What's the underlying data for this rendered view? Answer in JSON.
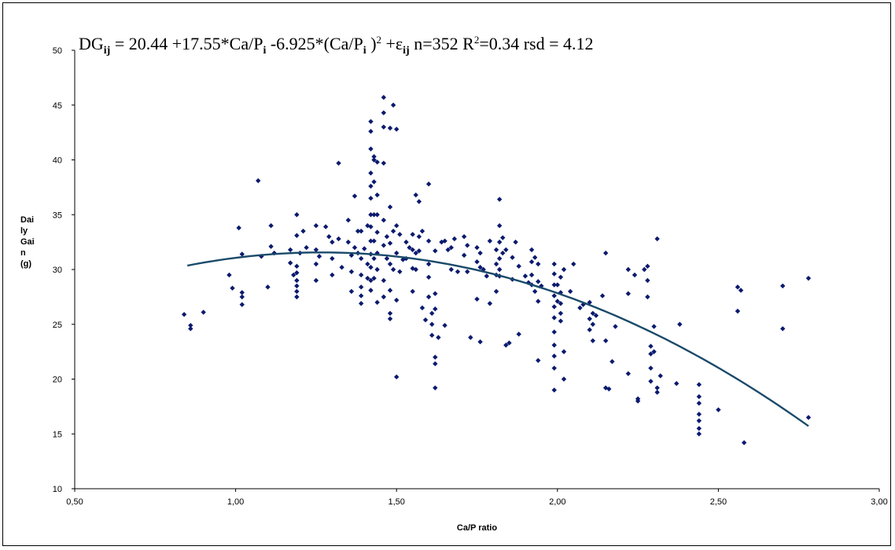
{
  "chart_data": {
    "type": "scatter",
    "xlabel": "Ca/P ratio",
    "ylabel_lines": [
      "Dai",
      "ly",
      "Gai",
      "n",
      "(g)"
    ],
    "xlim": [
      0.5,
      3.0
    ],
    "ylim": [
      10,
      50
    ],
    "x_ticks": [
      0.5,
      1.0,
      1.5,
      2.0,
      2.5,
      3.0
    ],
    "x_tick_labels": [
      "0,50",
      "1,00",
      "1,50",
      "2,00",
      "2,50",
      "3,00"
    ],
    "y_ticks": [
      10,
      15,
      20,
      25,
      30,
      35,
      40,
      45,
      50
    ],
    "y_tick_labels": [
      "10",
      "15",
      "20",
      "25",
      "30",
      "35",
      "40",
      "45",
      "50"
    ],
    "marker_color": "#0a1a6e",
    "curve_color": "#1a4a6a",
    "equation": {
      "lhs": "DG",
      "lhs_sub": "ij",
      "part1": " = 20.44 +17.55*Ca/P",
      "sub_i1": "i",
      "part2": " -6.925*(Ca/P",
      "sub_i2": "i",
      "part3": " )",
      "sup_2": "2",
      "part4": " +ε",
      "eps_sub": "ij",
      "part5": " n=352 R",
      "sup_r2": "2",
      "part6": "=0.34 rsd = 4.12"
    },
    "fit": {
      "a": 20.44,
      "b": 17.55,
      "c": -6.925,
      "x_from": 0.85,
      "x_to": 2.78
    },
    "points": [
      [
        0.84,
        25.9
      ],
      [
        0.86,
        24.9
      ],
      [
        0.86,
        24.6
      ],
      [
        0.9,
        26.1
      ],
      [
        0.98,
        29.5
      ],
      [
        0.99,
        28.3
      ],
      [
        1.01,
        33.8
      ],
      [
        1.02,
        31.4
      ],
      [
        1.02,
        27.9
      ],
      [
        1.02,
        27.5
      ],
      [
        1.02,
        26.8
      ],
      [
        1.07,
        38.1
      ],
      [
        1.08,
        31.2
      ],
      [
        1.1,
        28.4
      ],
      [
        1.11,
        34.0
      ],
      [
        1.11,
        32.1
      ],
      [
        1.12,
        31.5
      ],
      [
        1.17,
        31.8
      ],
      [
        1.17,
        30.6
      ],
      [
        1.18,
        29.5
      ],
      [
        1.19,
        35.0
      ],
      [
        1.19,
        33.1
      ],
      [
        1.19,
        30.3
      ],
      [
        1.19,
        29.7
      ],
      [
        1.19,
        29.0
      ],
      [
        1.19,
        28.5
      ],
      [
        1.19,
        28.0
      ],
      [
        1.19,
        27.5
      ],
      [
        1.2,
        31.5
      ],
      [
        1.21,
        33.5
      ],
      [
        1.22,
        32.0
      ],
      [
        1.25,
        34.0
      ],
      [
        1.25,
        31.8
      ],
      [
        1.25,
        30.5
      ],
      [
        1.25,
        29.0
      ],
      [
        1.26,
        31.2
      ],
      [
        1.28,
        33.9
      ],
      [
        1.29,
        33.0
      ],
      [
        1.3,
        32.5
      ],
      [
        1.3,
        31.0
      ],
      [
        1.3,
        29.5
      ],
      [
        1.32,
        39.7
      ],
      [
        1.32,
        32.8
      ],
      [
        1.33,
        30.2
      ],
      [
        1.35,
        34.5
      ],
      [
        1.35,
        32.5
      ],
      [
        1.36,
        31.3
      ],
      [
        1.36,
        29.8
      ],
      [
        1.36,
        28.0
      ],
      [
        1.37,
        36.7
      ],
      [
        1.37,
        32.0
      ],
      [
        1.38,
        33.5
      ],
      [
        1.38,
        31.5
      ],
      [
        1.39,
        33.5
      ],
      [
        1.39,
        31.0
      ],
      [
        1.39,
        29.5
      ],
      [
        1.39,
        28.4
      ],
      [
        1.39,
        27.6
      ],
      [
        1.39,
        26.9
      ],
      [
        1.4,
        31.9
      ],
      [
        1.41,
        34.0
      ],
      [
        1.41,
        30.5
      ],
      [
        1.41,
        29.2
      ],
      [
        1.42,
        43.5
      ],
      [
        1.42,
        42.6
      ],
      [
        1.42,
        41.0
      ],
      [
        1.42,
        38.8
      ],
      [
        1.42,
        37.6
      ],
      [
        1.42,
        36.5
      ],
      [
        1.42,
        35.0
      ],
      [
        1.42,
        33.9
      ],
      [
        1.42,
        32.6
      ],
      [
        1.42,
        31.4
      ],
      [
        1.42,
        30.2
      ],
      [
        1.42,
        29.0
      ],
      [
        1.42,
        28.1
      ],
      [
        1.43,
        40.3
      ],
      [
        1.43,
        40.0
      ],
      [
        1.43,
        38.0
      ],
      [
        1.43,
        35.0
      ],
      [
        1.43,
        32.6
      ],
      [
        1.43,
        31.0
      ],
      [
        1.43,
        29.2
      ],
      [
        1.44,
        39.8
      ],
      [
        1.44,
        36.8
      ],
      [
        1.44,
        35.0
      ],
      [
        1.44,
        33.4
      ],
      [
        1.44,
        31.5
      ],
      [
        1.44,
        30.0
      ],
      [
        1.44,
        27.0
      ],
      [
        1.46,
        45.7
      ],
      [
        1.46,
        44.3
      ],
      [
        1.46,
        43.0
      ],
      [
        1.46,
        39.7
      ],
      [
        1.46,
        34.5
      ],
      [
        1.46,
        32.2
      ],
      [
        1.46,
        29.0
      ],
      [
        1.46,
        27.5
      ],
      [
        1.47,
        33.0
      ],
      [
        1.47,
        31.0
      ],
      [
        1.48,
        42.9
      ],
      [
        1.48,
        35.7
      ],
      [
        1.48,
        32.4
      ],
      [
        1.48,
        30.5
      ],
      [
        1.48,
        28.1
      ],
      [
        1.48,
        26.0
      ],
      [
        1.48,
        25.5
      ],
      [
        1.49,
        45.0
      ],
      [
        1.49,
        33.5
      ],
      [
        1.49,
        30.0
      ],
      [
        1.5,
        42.8
      ],
      [
        1.5,
        34.0
      ],
      [
        1.5,
        31.5
      ],
      [
        1.5,
        27.2
      ],
      [
        1.5,
        20.2
      ],
      [
        1.51,
        33.2
      ],
      [
        1.51,
        29.8
      ],
      [
        1.52,
        30.9
      ],
      [
        1.53,
        32.5
      ],
      [
        1.53,
        31.0
      ],
      [
        1.54,
        32.0
      ],
      [
        1.55,
        33.2
      ],
      [
        1.55,
        31.8
      ],
      [
        1.55,
        30.1
      ],
      [
        1.55,
        28.0
      ],
      [
        1.56,
        36.8
      ],
      [
        1.56,
        31.5
      ],
      [
        1.56,
        30.0
      ],
      [
        1.57,
        36.2
      ],
      [
        1.57,
        33.0
      ],
      [
        1.57,
        31.7
      ],
      [
        1.58,
        33.5
      ],
      [
        1.58,
        26.5
      ],
      [
        1.59,
        25.4
      ],
      [
        1.6,
        37.8
      ],
      [
        1.6,
        32.6
      ],
      [
        1.6,
        30.5
      ],
      [
        1.6,
        29.3
      ],
      [
        1.6,
        27.5
      ],
      [
        1.61,
        26.0
      ],
      [
        1.61,
        25.0
      ],
      [
        1.61,
        24.0
      ],
      [
        1.62,
        31.7
      ],
      [
        1.62,
        27.8
      ],
      [
        1.62,
        26.4
      ],
      [
        1.62,
        22.0
      ],
      [
        1.62,
        21.4
      ],
      [
        1.62,
        19.2
      ],
      [
        1.63,
        23.8
      ],
      [
        1.64,
        32.5
      ],
      [
        1.65,
        32.6
      ],
      [
        1.65,
        24.9
      ],
      [
        1.66,
        31.8
      ],
      [
        1.67,
        32.0
      ],
      [
        1.67,
        30.0
      ],
      [
        1.68,
        32.8
      ],
      [
        1.69,
        29.8
      ],
      [
        1.71,
        33.0
      ],
      [
        1.71,
        31.3
      ],
      [
        1.72,
        32.2
      ],
      [
        1.72,
        29.8
      ],
      [
        1.73,
        23.8
      ],
      [
        1.75,
        32.0
      ],
      [
        1.75,
        30.7
      ],
      [
        1.75,
        27.3
      ],
      [
        1.76,
        31.5
      ],
      [
        1.76,
        30.2
      ],
      [
        1.76,
        23.4
      ],
      [
        1.77,
        30.0
      ],
      [
        1.78,
        29.4
      ],
      [
        1.79,
        32.6
      ],
      [
        1.79,
        26.9
      ],
      [
        1.81,
        31.8
      ],
      [
        1.81,
        30.5
      ],
      [
        1.81,
        29.5
      ],
      [
        1.81,
        28.0
      ],
      [
        1.82,
        36.4
      ],
      [
        1.82,
        34.0
      ],
      [
        1.82,
        32.5
      ],
      [
        1.82,
        31.0
      ],
      [
        1.82,
        30.0
      ],
      [
        1.82,
        29.4
      ],
      [
        1.83,
        32.9
      ],
      [
        1.83,
        31.5
      ],
      [
        1.84,
        31.8
      ],
      [
        1.84,
        23.1
      ],
      [
        1.85,
        23.3
      ],
      [
        1.86,
        31.1
      ],
      [
        1.86,
        29.1
      ],
      [
        1.87,
        32.5
      ],
      [
        1.88,
        30.3
      ],
      [
        1.88,
        24.1
      ],
      [
        1.9,
        29.4
      ],
      [
        1.91,
        28.8
      ],
      [
        1.92,
        31.8
      ],
      [
        1.92,
        30.7
      ],
      [
        1.92,
        29.5
      ],
      [
        1.92,
        28.6
      ],
      [
        1.93,
        31.1
      ],
      [
        1.93,
        28.0
      ],
      [
        1.94,
        30.5
      ],
      [
        1.94,
        28.9
      ],
      [
        1.94,
        27.1
      ],
      [
        1.94,
        21.7
      ],
      [
        1.95,
        28.5
      ],
      [
        1.99,
        30.5
      ],
      [
        1.99,
        29.6
      ],
      [
        1.99,
        28.6
      ],
      [
        1.99,
        27.6
      ],
      [
        1.99,
        26.6
      ],
      [
        1.99,
        25.6
      ],
      [
        1.99,
        24.3
      ],
      [
        1.99,
        23.1
      ],
      [
        1.99,
        22.1
      ],
      [
        1.99,
        21.0
      ],
      [
        1.99,
        19.0
      ],
      [
        2.0,
        28.6
      ],
      [
        2.0,
        27.1
      ],
      [
        2.01,
        29.3
      ],
      [
        2.01,
        27.9
      ],
      [
        2.01,
        26.9
      ],
      [
        2.01,
        26.0
      ],
      [
        2.01,
        25.3
      ],
      [
        2.02,
        22.5
      ],
      [
        2.02,
        20.0
      ],
      [
        2.02,
        30.0
      ],
      [
        2.04,
        28.0
      ],
      [
        2.05,
        30.5
      ],
      [
        2.07,
        26.5
      ],
      [
        2.08,
        26.8
      ],
      [
        2.1,
        27.0
      ],
      [
        2.1,
        25.5
      ],
      [
        2.1,
        24.5
      ],
      [
        2.11,
        26.0
      ],
      [
        2.11,
        25.0
      ],
      [
        2.11,
        23.5
      ],
      [
        2.12,
        25.8
      ],
      [
        2.14,
        27.6
      ],
      [
        2.15,
        31.5
      ],
      [
        2.15,
        23.5
      ],
      [
        2.15,
        19.2
      ],
      [
        2.16,
        19.1
      ],
      [
        2.17,
        21.6
      ],
      [
        2.18,
        24.8
      ],
      [
        2.22,
        30.0
      ],
      [
        2.22,
        27.8
      ],
      [
        2.22,
        20.5
      ],
      [
        2.24,
        29.5
      ],
      [
        2.25,
        18.0
      ],
      [
        2.25,
        18.2
      ],
      [
        2.27,
        30.0
      ],
      [
        2.28,
        30.3
      ],
      [
        2.28,
        29.0
      ],
      [
        2.28,
        27.5
      ],
      [
        2.29,
        23.0
      ],
      [
        2.29,
        22.3
      ],
      [
        2.29,
        21.0
      ],
      [
        2.29,
        19.8
      ],
      [
        2.3,
        22.5
      ],
      [
        2.3,
        24.8
      ],
      [
        2.31,
        19.2
      ],
      [
        2.31,
        18.8
      ],
      [
        2.31,
        32.8
      ],
      [
        2.32,
        20.3
      ],
      [
        2.37,
        19.6
      ],
      [
        2.38,
        25.0
      ],
      [
        2.44,
        19.5
      ],
      [
        2.44,
        18.4
      ],
      [
        2.44,
        17.8
      ],
      [
        2.44,
        16.8
      ],
      [
        2.44,
        16.2
      ],
      [
        2.44,
        15.5
      ],
      [
        2.44,
        15.0
      ],
      [
        2.5,
        17.2
      ],
      [
        2.56,
        26.2
      ],
      [
        2.56,
        28.4
      ],
      [
        2.57,
        28.1
      ],
      [
        2.58,
        14.2
      ],
      [
        2.7,
        28.5
      ],
      [
        2.7,
        24.6
      ],
      [
        2.78,
        29.2
      ],
      [
        2.78,
        16.5
      ]
    ]
  }
}
